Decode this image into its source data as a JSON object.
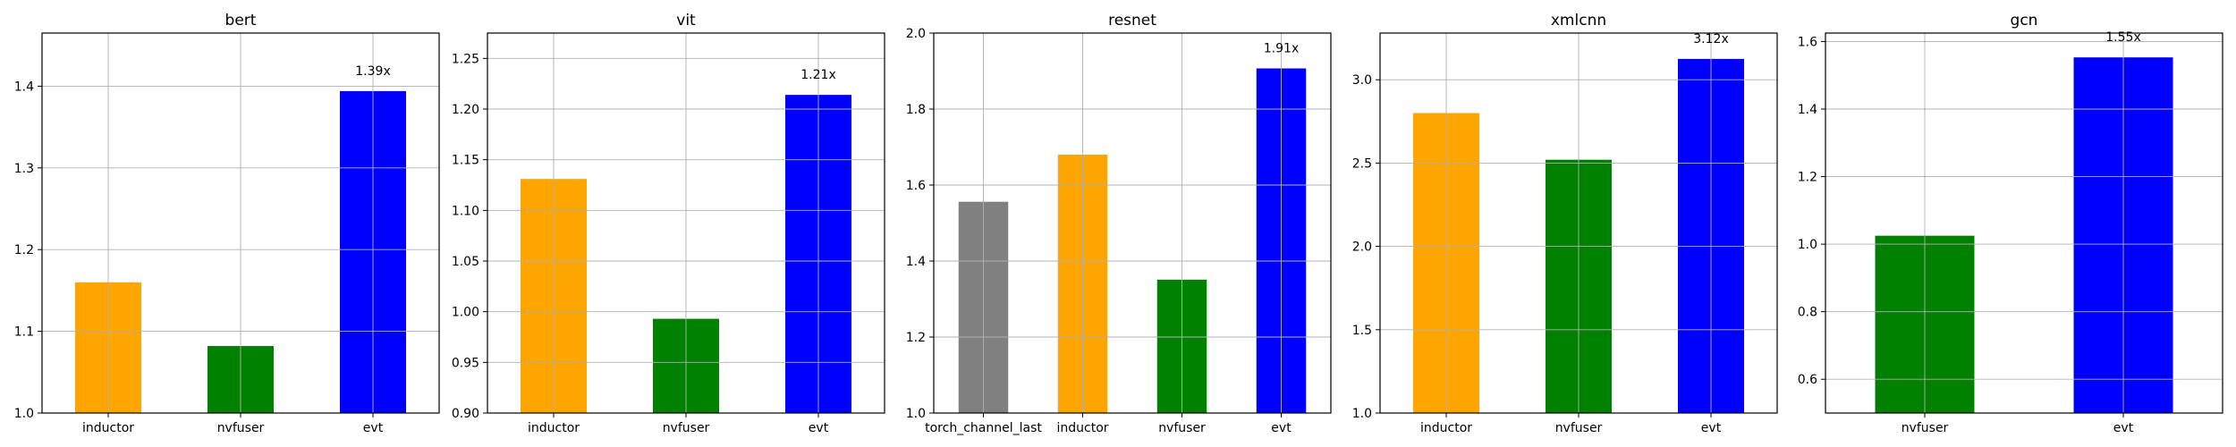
{
  "chart_data": [
    {
      "type": "bar",
      "title": "bert",
      "categories": [
        "inductor",
        "nvfuser",
        "evt"
      ],
      "values": [
        1.16,
        1.082,
        1.394
      ],
      "colors": [
        "#ffa500",
        "#008000",
        "#0000ff"
      ],
      "ylim": [
        1.0,
        1.465
      ],
      "yticks": [
        "1.0",
        "1.1",
        "1.2",
        "1.3",
        "1.4"
      ],
      "annotation": {
        "index": 2,
        "text": "1.39x"
      },
      "grid": true
    },
    {
      "type": "bar",
      "title": "vit",
      "categories": [
        "inductor",
        "nvfuser",
        "evt"
      ],
      "values": [
        1.131,
        0.993,
        1.214
      ],
      "colors": [
        "#ffa500",
        "#008000",
        "#0000ff"
      ],
      "ylim": [
        0.9,
        1.275
      ],
      "yticks": [
        "0.90",
        "0.95",
        "1.00",
        "1.05",
        "1.10",
        "1.15",
        "1.20",
        "1.25"
      ],
      "annotation": {
        "index": 2,
        "text": "1.21x"
      },
      "grid": true
    },
    {
      "type": "bar",
      "title": "resnet",
      "categories": [
        "torch_channel_last",
        "inductor",
        "nvfuser",
        "evt"
      ],
      "values": [
        1.556,
        1.68,
        1.351,
        1.907
      ],
      "colors": [
        "#808080",
        "#ffa500",
        "#008000",
        "#0000ff"
      ],
      "ylim": [
        1.0,
        2.0
      ],
      "yticks": [
        "1.0",
        "1.2",
        "1.4",
        "1.6",
        "1.8",
        "2.0"
      ],
      "annotation": {
        "index": 3,
        "text": "1.91x"
      },
      "grid": true
    },
    {
      "type": "bar",
      "title": "xmlcnn",
      "categories": [
        "inductor",
        "nvfuser",
        "evt"
      ],
      "values": [
        2.8,
        2.52,
        3.125
      ],
      "colors": [
        "#ffa500",
        "#008000",
        "#0000ff"
      ],
      "ylim": [
        1.0,
        3.28
      ],
      "yticks": [
        "1.0",
        "1.5",
        "2.0",
        "2.5",
        "3.0"
      ],
      "annotation": {
        "index": 2,
        "text": "3.12x"
      },
      "grid": true
    },
    {
      "type": "bar",
      "title": "gcn",
      "categories": [
        "nvfuser",
        "evt"
      ],
      "values": [
        1.025,
        1.553
      ],
      "colors": [
        "#008000",
        "#0000ff"
      ],
      "ylim": [
        0.5,
        1.625
      ],
      "yticks": [
        "0.6",
        "0.8",
        "1.0",
        "1.2",
        "1.4",
        "1.6"
      ],
      "annotation": {
        "index": 1,
        "text": "1.55x"
      },
      "grid": true
    }
  ]
}
